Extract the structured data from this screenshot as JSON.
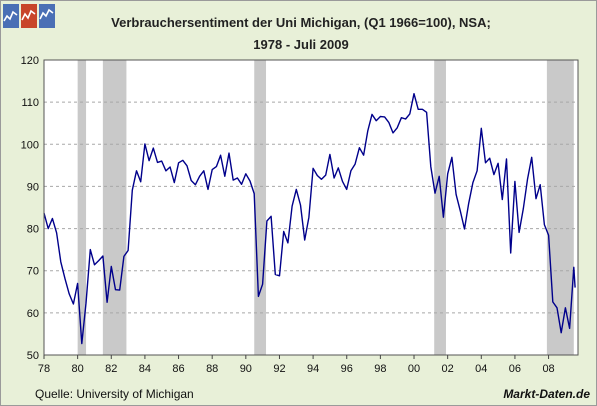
{
  "chart_data": {
    "type": "line",
    "title": "Verbrauchersentiment der Uni Michigan, (Q1 1966=100), NSA;",
    "subtitle": "1978 - Juli 2009",
    "xlabel": "",
    "ylabel": "",
    "xlim": [
      1978,
      2009.75
    ],
    "ylim": [
      50,
      120
    ],
    "y_ticks": [
      "50",
      "60",
      "70",
      "80",
      "90",
      "100",
      "110",
      "120"
    ],
    "x_ticks": [
      "78",
      "80",
      "82",
      "84",
      "86",
      "88",
      "90",
      "92",
      "94",
      "96",
      "98",
      "00",
      "02",
      "04",
      "06",
      "08"
    ],
    "grid": "horizontal dashed",
    "line_color": "#00008b",
    "recession_color": "#c9c9c9",
    "recessions": [
      [
        1980.0,
        1980.5
      ],
      [
        1981.5,
        1982.9
      ],
      [
        1990.5,
        1991.2
      ],
      [
        2001.2,
        2001.9
      ],
      [
        2007.9,
        2009.5
      ]
    ],
    "series": [
      {
        "values": [
          [
            1978.0,
            83.7
          ],
          [
            1978.25,
            80.0
          ],
          [
            1978.5,
            82.4
          ],
          [
            1978.75,
            79.0
          ],
          [
            1979.0,
            72.1
          ],
          [
            1979.25,
            68.1
          ],
          [
            1979.5,
            64.5
          ],
          [
            1979.75,
            62.1
          ],
          [
            1980.0,
            67.0
          ],
          [
            1980.25,
            52.7
          ],
          [
            1980.5,
            62.3
          ],
          [
            1980.75,
            75.0
          ],
          [
            1981.0,
            71.4
          ],
          [
            1981.25,
            72.4
          ],
          [
            1981.5,
            73.5
          ],
          [
            1981.75,
            62.5
          ],
          [
            1982.0,
            71.0
          ],
          [
            1982.25,
            65.5
          ],
          [
            1982.5,
            65.4
          ],
          [
            1982.75,
            73.4
          ],
          [
            1983.0,
            74.8
          ],
          [
            1983.25,
            89.1
          ],
          [
            1983.5,
            93.7
          ],
          [
            1983.75,
            91.1
          ],
          [
            1984.0,
            100.1
          ],
          [
            1984.25,
            96.1
          ],
          [
            1984.5,
            99.1
          ],
          [
            1984.75,
            95.7
          ],
          [
            1985.0,
            96.0
          ],
          [
            1985.25,
            93.7
          ],
          [
            1985.5,
            94.6
          ],
          [
            1985.75,
            90.9
          ],
          [
            1986.0,
            95.6
          ],
          [
            1986.25,
            96.2
          ],
          [
            1986.5,
            94.9
          ],
          [
            1986.75,
            91.4
          ],
          [
            1987.0,
            90.4
          ],
          [
            1987.25,
            92.4
          ],
          [
            1987.5,
            93.7
          ],
          [
            1987.75,
            89.3
          ],
          [
            1988.0,
            94.0
          ],
          [
            1988.25,
            94.7
          ],
          [
            1988.5,
            97.4
          ],
          [
            1988.75,
            92.4
          ],
          [
            1989.0,
            97.9
          ],
          [
            1989.25,
            91.5
          ],
          [
            1989.5,
            92.0
          ],
          [
            1989.75,
            90.5
          ],
          [
            1990.0,
            93.0
          ],
          [
            1990.25,
            91.3
          ],
          [
            1990.5,
            88.3
          ],
          [
            1990.75,
            63.9
          ],
          [
            1991.0,
            66.8
          ],
          [
            1991.25,
            81.8
          ],
          [
            1991.5,
            82.9
          ],
          [
            1991.75,
            69.1
          ],
          [
            1992.0,
            68.8
          ],
          [
            1992.25,
            79.3
          ],
          [
            1992.5,
            76.6
          ],
          [
            1992.75,
            85.3
          ],
          [
            1993.0,
            89.3
          ],
          [
            1993.25,
            85.6
          ],
          [
            1993.5,
            77.3
          ],
          [
            1993.75,
            82.7
          ],
          [
            1994.0,
            94.3
          ],
          [
            1994.25,
            92.6
          ],
          [
            1994.5,
            91.7
          ],
          [
            1994.75,
            92.7
          ],
          [
            1995.0,
            97.6
          ],
          [
            1995.25,
            92.0
          ],
          [
            1995.5,
            94.4
          ],
          [
            1995.75,
            91.2
          ],
          [
            1996.0,
            89.3
          ],
          [
            1996.25,
            93.7
          ],
          [
            1996.5,
            95.3
          ],
          [
            1996.75,
            99.2
          ],
          [
            1997.0,
            97.4
          ],
          [
            1997.25,
            103.2
          ],
          [
            1997.5,
            107.1
          ],
          [
            1997.75,
            105.6
          ],
          [
            1998.0,
            106.6
          ],
          [
            1998.25,
            106.5
          ],
          [
            1998.5,
            105.2
          ],
          [
            1998.75,
            102.7
          ],
          [
            1999.0,
            103.9
          ],
          [
            1999.25,
            106.3
          ],
          [
            1999.5,
            106.0
          ],
          [
            1999.75,
            107.2
          ],
          [
            2000.0,
            112.0
          ],
          [
            2000.25,
            108.3
          ],
          [
            2000.5,
            108.3
          ],
          [
            2000.75,
            107.6
          ],
          [
            2001.0,
            94.7
          ],
          [
            2001.25,
            88.4
          ],
          [
            2001.5,
            92.4
          ],
          [
            2001.75,
            82.7
          ],
          [
            2002.0,
            93.0
          ],
          [
            2002.25,
            96.9
          ],
          [
            2002.5,
            88.1
          ],
          [
            2002.75,
            84.2
          ],
          [
            2003.0,
            79.9
          ],
          [
            2003.25,
            86.0
          ],
          [
            2003.5,
            90.9
          ],
          [
            2003.75,
            93.7
          ],
          [
            2004.0,
            103.8
          ],
          [
            2004.25,
            95.6
          ],
          [
            2004.5,
            96.7
          ],
          [
            2004.75,
            92.8
          ],
          [
            2005.0,
            95.5
          ],
          [
            2005.25,
            86.9
          ],
          [
            2005.5,
            96.5
          ],
          [
            2005.75,
            74.2
          ],
          [
            2006.0,
            91.2
          ],
          [
            2006.25,
            79.1
          ],
          [
            2006.5,
            84.7
          ],
          [
            2006.75,
            91.7
          ],
          [
            2007.0,
            96.9
          ],
          [
            2007.25,
            87.1
          ],
          [
            2007.5,
            90.4
          ],
          [
            2007.75,
            80.9
          ],
          [
            2008.0,
            78.4
          ],
          [
            2008.25,
            62.6
          ],
          [
            2008.5,
            61.2
          ],
          [
            2008.75,
            55.3
          ],
          [
            2009.0,
            61.2
          ],
          [
            2009.25,
            56.3
          ],
          [
            2009.5,
            70.8
          ],
          [
            2009.58,
            66.0
          ]
        ]
      }
    ],
    "source_label": "Quelle: University of Michigan",
    "brand_label": "Markt-Daten.de"
  }
}
